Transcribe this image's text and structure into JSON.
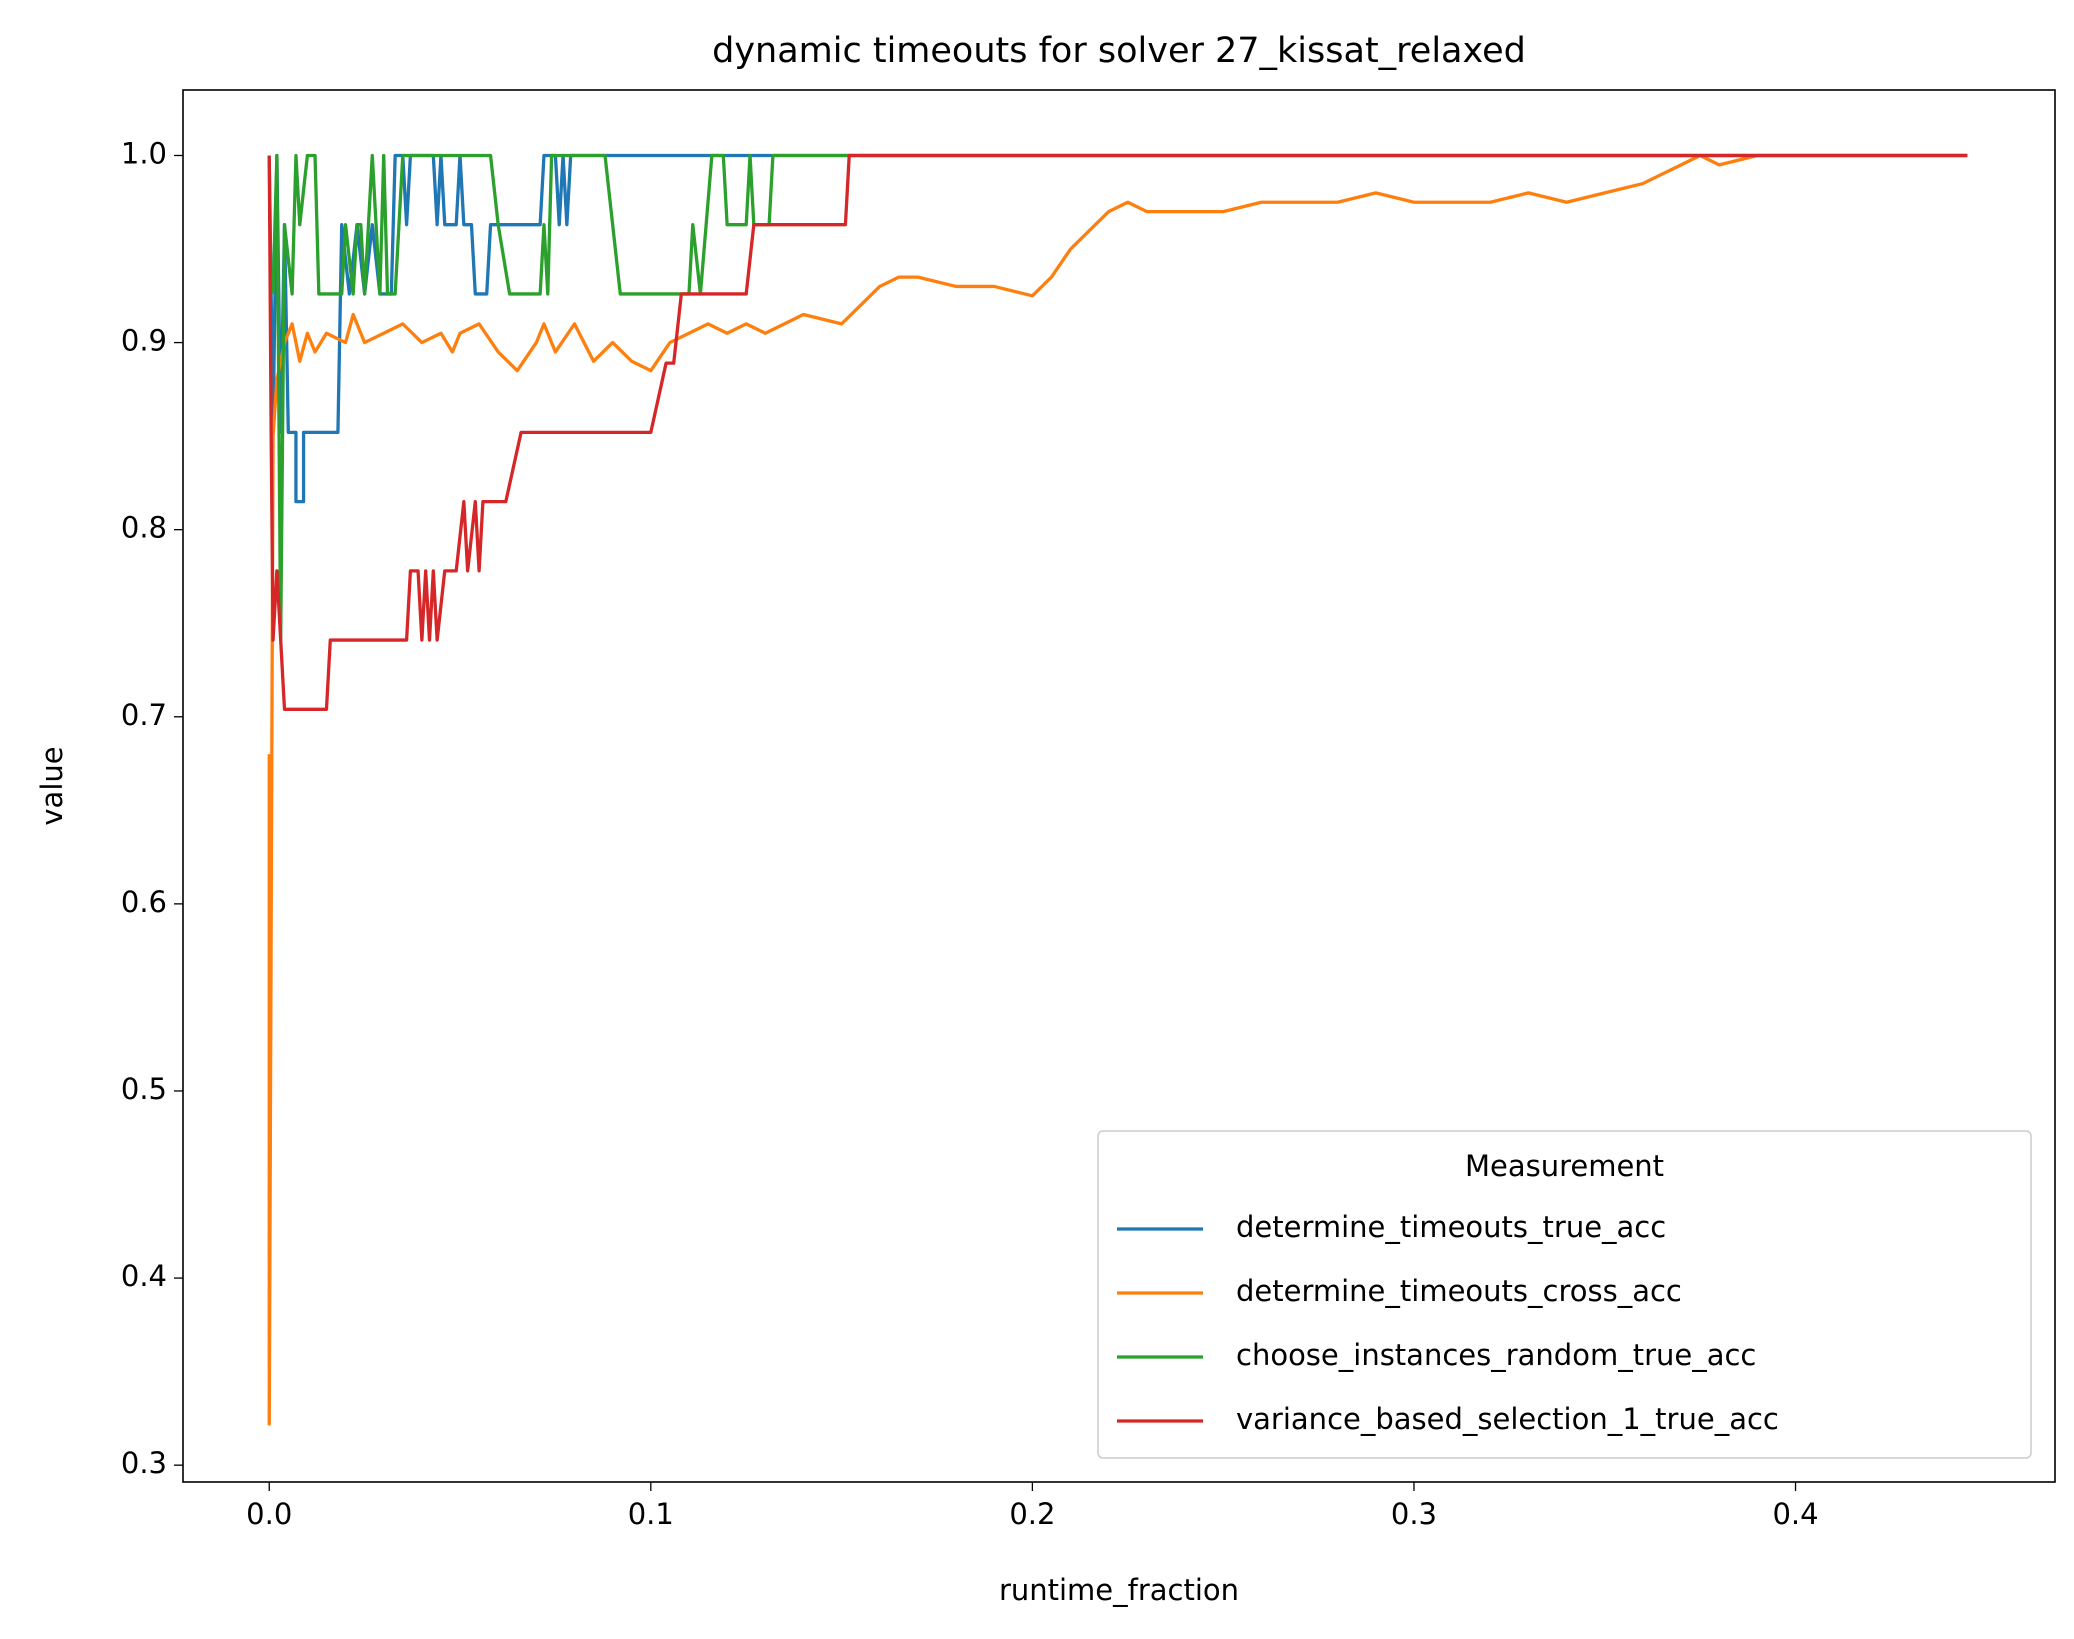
{
  "chart_data": {
    "type": "line",
    "title": "dynamic timeouts for solver 27_kissat_relaxed",
    "xlabel": "runtime_fraction",
    "ylabel": "value",
    "xlim": [
      -0.0226,
      0.468
    ],
    "ylim": [
      0.291,
      1.035
    ],
    "xticks": [
      {
        "value": 0,
        "label": "0.0"
      },
      0.1,
      0.2,
      0.3,
      0.4
    ],
    "yticks": [
      0.3,
      0.4,
      0.5,
      0.6,
      0.7,
      0.8,
      0.9,
      {
        "value": 1,
        "label": "1.0"
      }
    ],
    "grid": false,
    "legend_title": "Measurement",
    "legend_position": "lower right",
    "series": [
      {
        "name": "determine_timeouts_true_acc",
        "color": "#1f77b4",
        "x": [
          0,
          0.001,
          0.002,
          0.003,
          0.004,
          0.005,
          0.007,
          0.007,
          0.009,
          0.009,
          0.018,
          0.019,
          0.021,
          0.023,
          0.025,
          0.027,
          0.029,
          0.032,
          0.033,
          0.035,
          0.036,
          0.037,
          0.043,
          0.044,
          0.045,
          0.046,
          0.049,
          0.05,
          0.051,
          0.053,
          0.054,
          0.057,
          0.058,
          0.071,
          0.072,
          0.075,
          0.076,
          0.077,
          0.078,
          0.079,
          0.445
        ],
        "values": [
          1.0,
          0.852,
          1.0,
          0.852,
          0.963,
          0.852,
          0.852,
          0.815,
          0.815,
          0.852,
          0.852,
          0.963,
          0.926,
          0.963,
          0.926,
          0.963,
          0.926,
          0.926,
          1.0,
          1.0,
          0.963,
          1.0,
          1.0,
          0.963,
          1.0,
          0.963,
          0.963,
          1.0,
          0.963,
          0.963,
          0.926,
          0.926,
          0.963,
          0.963,
          1.0,
          1.0,
          0.963,
          1.0,
          0.963,
          1.0,
          1.0
        ]
      },
      {
        "name": "determine_timeouts_cross_acc",
        "color": "#ff7f0e",
        "x": [
          0,
          0,
          0.001,
          0.002,
          0.004,
          0.006,
          0.008,
          0.01,
          0.012,
          0.015,
          0.02,
          0.022,
          0.025,
          0.03,
          0.035,
          0.04,
          0.045,
          0.048,
          0.05,
          0.055,
          0.06,
          0.065,
          0.07,
          0.072,
          0.075,
          0.08,
          0.085,
          0.09,
          0.095,
          0.1,
          0.105,
          0.11,
          0.115,
          0.12,
          0.125,
          0.13,
          0.14,
          0.15,
          0.155,
          0.16,
          0.165,
          0.17,
          0.18,
          0.19,
          0.2,
          0.205,
          0.21,
          0.215,
          0.22,
          0.225,
          0.23,
          0.24,
          0.25,
          0.26,
          0.27,
          0.28,
          0.29,
          0.3,
          0.31,
          0.32,
          0.33,
          0.34,
          0.35,
          0.36,
          0.365,
          0.37,
          0.375,
          0.38,
          0.39,
          0.4,
          0.41,
          0.42,
          0.43,
          0.445
        ],
        "values": [
          0.68,
          0.322,
          0.85,
          0.88,
          0.9,
          0.91,
          0.89,
          0.905,
          0.895,
          0.905,
          0.9,
          0.915,
          0.9,
          0.905,
          0.91,
          0.9,
          0.905,
          0.895,
          0.905,
          0.91,
          0.895,
          0.885,
          0.9,
          0.91,
          0.895,
          0.91,
          0.89,
          0.9,
          0.89,
          0.885,
          0.9,
          0.905,
          0.91,
          0.905,
          0.91,
          0.905,
          0.915,
          0.91,
          0.92,
          0.93,
          0.935,
          0.935,
          0.93,
          0.93,
          0.925,
          0.935,
          0.95,
          0.96,
          0.97,
          0.975,
          0.97,
          0.97,
          0.97,
          0.975,
          0.975,
          0.975,
          0.98,
          0.975,
          0.975,
          0.975,
          0.98,
          0.975,
          0.98,
          0.985,
          0.99,
          0.995,
          1.0,
          0.995,
          1.0,
          1.0,
          1.0,
          1.0,
          1.0,
          1.0
        ]
      },
      {
        "name": "choose_instances_random_true_acc",
        "color": "#2ca02c",
        "x": [
          0.001,
          0.002,
          0.003,
          0.004,
          0.006,
          0.007,
          0.008,
          0.01,
          0.012,
          0.013,
          0.019,
          0.02,
          0.022,
          0.023,
          0.024,
          0.025,
          0.027,
          0.029,
          0.03,
          0.031,
          0.033,
          0.034,
          0.035,
          0.058,
          0.06,
          0.063,
          0.071,
          0.072,
          0.073,
          0.074,
          0.088,
          0.09,
          0.092,
          0.11,
          0.111,
          0.113,
          0.116,
          0.119,
          0.12,
          0.125,
          0.126,
          0.127,
          0.131,
          0.132,
          0.445
        ],
        "values": [
          0.926,
          1.0,
          0.741,
          0.963,
          0.926,
          1.0,
          0.963,
          1.0,
          1.0,
          0.926,
          0.926,
          0.963,
          0.926,
          0.963,
          0.963,
          0.926,
          1.0,
          0.926,
          1.0,
          0.926,
          0.926,
          0.963,
          1.0,
          1.0,
          0.963,
          0.926,
          0.926,
          0.963,
          0.926,
          1.0,
          1.0,
          0.963,
          0.926,
          0.926,
          0.963,
          0.926,
          1.0,
          1.0,
          0.963,
          0.963,
          1.0,
          0.963,
          0.963,
          1.0,
          1.0
        ]
      },
      {
        "name": "variance_based_selection_1_true_acc",
        "color": "#d62728",
        "x": [
          0,
          0.0005,
          0.001,
          0.002,
          0.003,
          0.004,
          0.015,
          0.016,
          0.036,
          0.037,
          0.039,
          0.04,
          0.041,
          0.042,
          0.043,
          0.044,
          0.046,
          0.049,
          0.051,
          0.052,
          0.054,
          0.055,
          0.056,
          0.062,
          0.066,
          0.1,
          0.104,
          0.106,
          0.108,
          0.125,
          0.127,
          0.151,
          0.152,
          0.445
        ],
        "values": [
          1.0,
          0.852,
          0.741,
          0.778,
          0.741,
          0.704,
          0.704,
          0.741,
          0.741,
          0.778,
          0.778,
          0.741,
          0.778,
          0.741,
          0.778,
          0.741,
          0.778,
          0.778,
          0.815,
          0.778,
          0.815,
          0.778,
          0.815,
          0.815,
          0.852,
          0.852,
          0.889,
          0.889,
          0.926,
          0.926,
          0.963,
          0.963,
          1.0,
          1.0
        ]
      }
    ]
  }
}
